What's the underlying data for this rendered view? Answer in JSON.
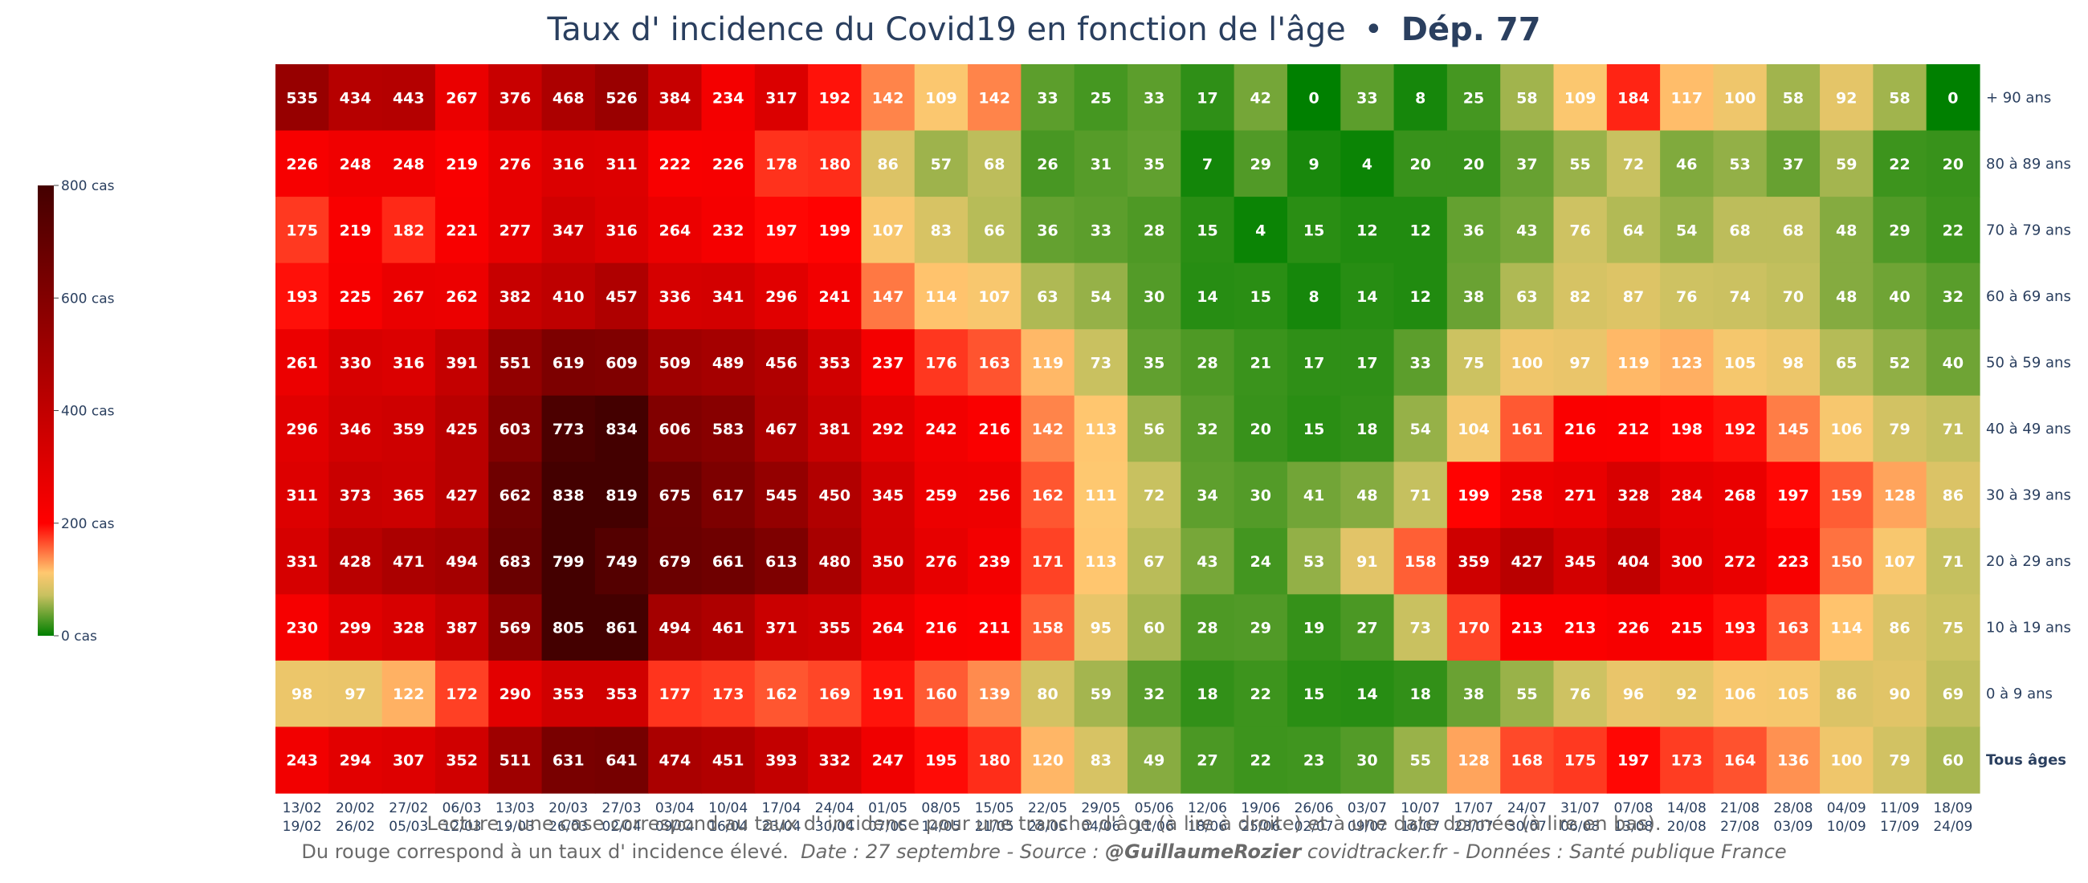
{
  "chart_data": {
    "type": "heatmap",
    "title": "Taux d' incidence du Covid19 en fonction de l'âge",
    "title_separator": "•",
    "title_bold": "Dép. 77",
    "rows": [
      "+ 90 ans",
      "80 à 89 ans",
      "70 à 79 ans",
      "60 à 69 ans",
      "50 à 59 ans",
      "40 à 49 ans",
      "30 à 39 ans",
      "20 à 29 ans",
      "10 à 19 ans",
      "0 à 9 ans",
      "Tous âges"
    ],
    "bold_row": "Tous âges",
    "columns": [
      [
        "13/02",
        "19/02"
      ],
      [
        "20/02",
        "26/02"
      ],
      [
        "27/02",
        "05/03"
      ],
      [
        "06/03",
        "12/03"
      ],
      [
        "13/03",
        "19/03"
      ],
      [
        "20/03",
        "26/03"
      ],
      [
        "27/03",
        "02/04"
      ],
      [
        "03/04",
        "09/04"
      ],
      [
        "10/04",
        "16/04"
      ],
      [
        "17/04",
        "23/04"
      ],
      [
        "24/04",
        "30/04"
      ],
      [
        "01/05",
        "07/05"
      ],
      [
        "08/05",
        "14/05"
      ],
      [
        "15/05",
        "21/05"
      ],
      [
        "22/05",
        "28/05"
      ],
      [
        "29/05",
        "04/06"
      ],
      [
        "05/06",
        "11/06"
      ],
      [
        "12/06",
        "18/06"
      ],
      [
        "19/06",
        "25/06"
      ],
      [
        "26/06",
        "02/07"
      ],
      [
        "03/07",
        "09/07"
      ],
      [
        "10/07",
        "16/07"
      ],
      [
        "17/07",
        "23/07"
      ],
      [
        "24/07",
        "30/07"
      ],
      [
        "31/07",
        "06/08"
      ],
      [
        "07/08",
        "13/08"
      ],
      [
        "14/08",
        "20/08"
      ],
      [
        "21/08",
        "27/08"
      ],
      [
        "28/08",
        "03/09"
      ],
      [
        "04/09",
        "10/09"
      ],
      [
        "11/09",
        "17/09"
      ],
      [
        "18/09",
        "24/09"
      ]
    ],
    "values": [
      [
        535,
        434,
        443,
        267,
        376,
        468,
        526,
        384,
        234,
        317,
        192,
        142,
        109,
        142,
        33,
        25,
        33,
        17,
        42,
        0,
        33,
        8,
        25,
        58,
        109,
        184,
        117,
        100,
        58,
        92,
        58,
        0
      ],
      [
        226,
        248,
        248,
        219,
        276,
        316,
        311,
        222,
        226,
        178,
        180,
        86,
        57,
        68,
        26,
        31,
        35,
        7,
        29,
        9,
        4,
        20,
        20,
        37,
        55,
        72,
        46,
        53,
        37,
        59,
        22,
        20
      ],
      [
        175,
        219,
        182,
        221,
        277,
        347,
        316,
        264,
        232,
        197,
        199,
        107,
        83,
        66,
        36,
        33,
        28,
        15,
        4,
        15,
        12,
        12,
        36,
        43,
        76,
        64,
        54,
        68,
        68,
        48,
        29,
        22
      ],
      [
        193,
        225,
        267,
        262,
        382,
        410,
        457,
        336,
        341,
        296,
        241,
        147,
        114,
        107,
        63,
        54,
        30,
        14,
        15,
        8,
        14,
        12,
        38,
        63,
        82,
        87,
        76,
        74,
        70,
        48,
        40,
        32
      ],
      [
        261,
        330,
        316,
        391,
        551,
        619,
        609,
        509,
        489,
        456,
        353,
        237,
        176,
        163,
        119,
        73,
        35,
        28,
        21,
        17,
        17,
        33,
        75,
        100,
        97,
        119,
        123,
        105,
        98,
        65,
        52,
        40
      ],
      [
        296,
        346,
        359,
        425,
        603,
        773,
        834,
        606,
        583,
        467,
        381,
        292,
        242,
        216,
        142,
        113,
        56,
        32,
        20,
        15,
        18,
        54,
        104,
        161,
        216,
        212,
        198,
        192,
        145,
        106,
        79,
        71
      ],
      [
        311,
        373,
        365,
        427,
        662,
        838,
        819,
        675,
        617,
        545,
        450,
        345,
        259,
        256,
        162,
        111,
        72,
        34,
        30,
        41,
        48,
        71,
        199,
        258,
        271,
        328,
        284,
        268,
        197,
        159,
        128,
        86
      ],
      [
        331,
        428,
        471,
        494,
        683,
        799,
        749,
        679,
        661,
        613,
        480,
        350,
        276,
        239,
        171,
        113,
        67,
        43,
        24,
        53,
        91,
        158,
        359,
        427,
        345,
        404,
        300,
        272,
        223,
        150,
        107,
        71
      ],
      [
        230,
        299,
        328,
        387,
        569,
        805,
        861,
        494,
        461,
        371,
        355,
        264,
        216,
        211,
        158,
        95,
        60,
        28,
        29,
        19,
        27,
        73,
        170,
        213,
        213,
        226,
        215,
        193,
        163,
        114,
        86,
        75
      ],
      [
        98,
        97,
        122,
        172,
        290,
        353,
        353,
        177,
        173,
        162,
        169,
        191,
        160,
        139,
        80,
        59,
        32,
        18,
        22,
        15,
        14,
        18,
        38,
        55,
        76,
        96,
        92,
        106,
        105,
        86,
        90,
        69
      ],
      [
        243,
        294,
        307,
        352,
        511,
        631,
        641,
        474,
        451,
        393,
        332,
        247,
        195,
        180,
        120,
        83,
        49,
        27,
        22,
        23,
        30,
        55,
        128,
        168,
        175,
        197,
        173,
        164,
        136,
        100,
        79,
        60
      ]
    ],
    "zmin": 0,
    "zmax": 800,
    "colorbar": {
      "ticks": [
        0,
        200,
        400,
        600,
        800
      ],
      "tick_labels": [
        "0 cas",
        "200 cas",
        "400 cas",
        "600 cas",
        "800 cas"
      ],
      "placement": "left"
    },
    "colorscale": [
      [
        0,
        "#008000"
      ],
      [
        0.09,
        "#c8c160"
      ],
      [
        0.14,
        "#ffc870"
      ],
      [
        0.25,
        "#ff0000"
      ],
      [
        0.5,
        "#c10000"
      ],
      [
        1,
        "#440000"
      ]
    ]
  },
  "caption": {
    "line1": "Lecture : une case correspond au taux d' incidence pour une tranche d'âge (à lire à droite) et à une date donnée (à lire en bas).",
    "line2_start": "Du rouge correspond à un taux d' incidence élevé.",
    "line2_date": "Date : 27 septembre - Source :",
    "line2_author": "@GuillaumeRozier",
    "line2_end": "covidtracker.fr - Données : Santé publique France"
  }
}
